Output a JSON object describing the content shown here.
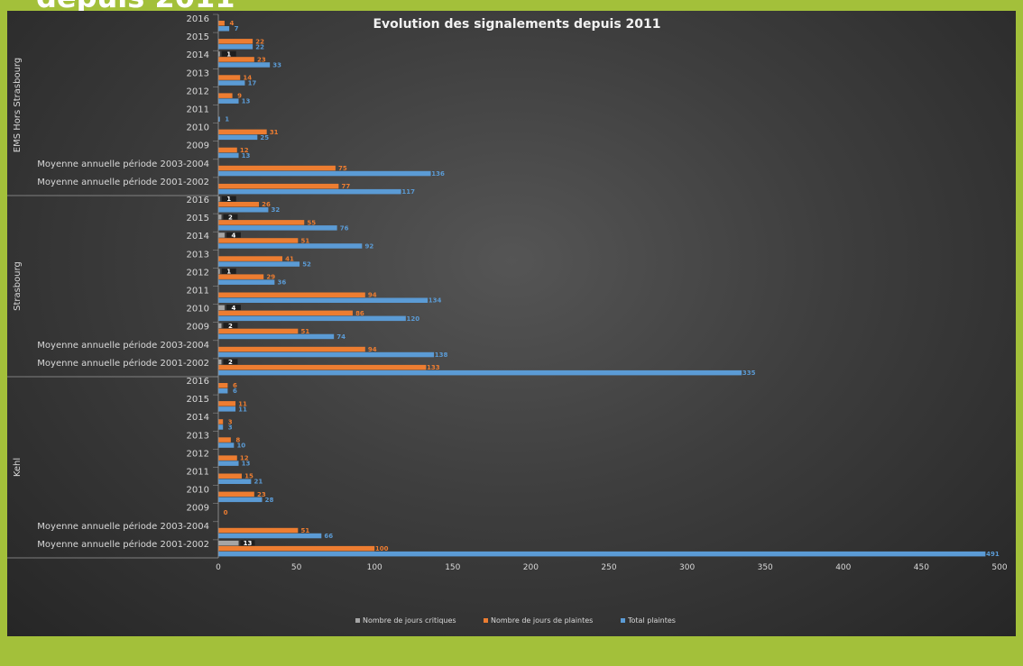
{
  "page": {
    "heading": "depuis 2011"
  },
  "colors": {
    "critiques": "#a5a5a5",
    "jours": "#ed7d31",
    "total": "#5b9bd5",
    "axis_text": "#d9d9d9",
    "panel_green": "#a3c03a"
  },
  "chart_data": {
    "type": "bar",
    "orientation": "horizontal",
    "title": "Evolution des signalements depuis 2011",
    "xlim": [
      0,
      500
    ],
    "xticks": [
      0,
      50,
      100,
      150,
      200,
      250,
      300,
      350,
      400,
      450,
      500
    ],
    "legend_position": "bottom",
    "series": [
      {
        "name": "Nombre de jours critiques",
        "color": "#a5a5a5"
      },
      {
        "name": "Nombre de jours de plaintes",
        "color": "#ed7d31"
      },
      {
        "name": "Total plaintes",
        "color": "#5b9bd5"
      }
    ],
    "groups": [
      {
        "name": "EMS Hors Strasbourg",
        "categories": [
          {
            "label": "2016",
            "values": [
              null,
              4,
              7
            ]
          },
          {
            "label": "2015",
            "values": [
              null,
              22,
              22
            ]
          },
          {
            "label": "2014",
            "values": [
              1,
              23,
              33
            ]
          },
          {
            "label": "2013",
            "values": [
              null,
              14,
              17
            ]
          },
          {
            "label": "2012",
            "values": [
              null,
              9,
              13
            ]
          },
          {
            "label": "2011",
            "values": [
              null,
              null,
              1
            ]
          },
          {
            "label": "2010",
            "values": [
              null,
              31,
              25
            ]
          },
          {
            "label": "2009",
            "values": [
              null,
              12,
              13
            ]
          },
          {
            "label": "Moyenne annuelle période 2003-2004",
            "values": [
              null,
              75,
              136
            ]
          },
          {
            "label": "Moyenne annuelle période 2001-2002",
            "values": [
              null,
              77,
              117
            ]
          }
        ]
      },
      {
        "name": "Strasbourg",
        "categories": [
          {
            "label": "2016",
            "values": [
              1,
              26,
              32
            ]
          },
          {
            "label": "2015",
            "values": [
              2,
              55,
              76
            ]
          },
          {
            "label": "2014",
            "values": [
              4,
              51,
              92
            ]
          },
          {
            "label": "2013",
            "values": [
              null,
              41,
              52
            ]
          },
          {
            "label": "2012",
            "values": [
              1,
              29,
              36
            ]
          },
          {
            "label": "2011",
            "values": [
              null,
              94,
              134
            ]
          },
          {
            "label": "2010",
            "values": [
              4,
              86,
              120
            ]
          },
          {
            "label": "2009",
            "values": [
              2,
              51,
              74
            ]
          },
          {
            "label": "Moyenne annuelle période 2003-2004",
            "values": [
              null,
              94,
              138
            ]
          },
          {
            "label": "Moyenne annuelle période 2001-2002",
            "values": [
              2,
              133,
              335
            ]
          }
        ]
      },
      {
        "name": "Kehl",
        "categories": [
          {
            "label": "2016",
            "values": [
              null,
              6,
              6
            ]
          },
          {
            "label": "2015",
            "values": [
              null,
              11,
              11
            ]
          },
          {
            "label": "2014",
            "values": [
              null,
              3,
              3
            ]
          },
          {
            "label": "2013",
            "values": [
              null,
              8,
              10
            ]
          },
          {
            "label": "2012",
            "values": [
              null,
              12,
              13
            ]
          },
          {
            "label": "2011",
            "values": [
              null,
              15,
              21
            ]
          },
          {
            "label": "2010",
            "values": [
              null,
              23,
              28
            ]
          },
          {
            "label": "2009",
            "values": [
              null,
              0,
              null
            ]
          },
          {
            "label": "Moyenne annuelle période 2003-2004",
            "values": [
              null,
              51,
              66
            ]
          },
          {
            "label": "Moyenne annuelle période 2001-2002",
            "values": [
              13,
              100,
              491
            ]
          }
        ]
      }
    ]
  }
}
